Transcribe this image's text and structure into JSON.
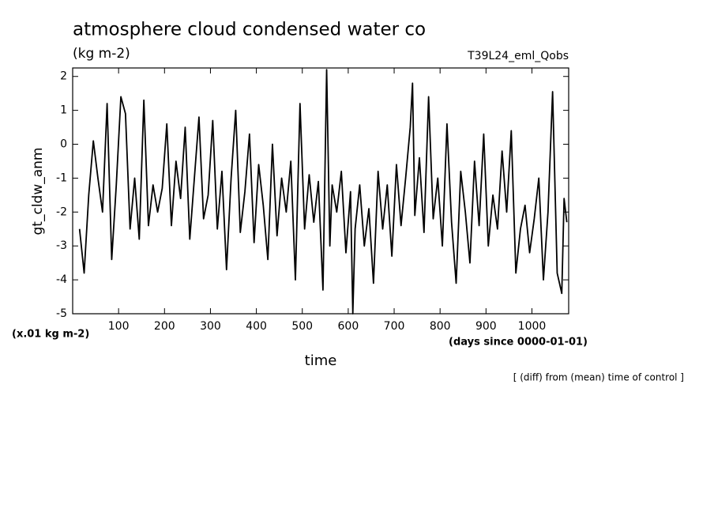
{
  "chart_data": {
    "type": "line",
    "title": "atmosphere cloud condensed water co",
    "subtitle": "(kg m-2)",
    "annotation": "T39L24_eml_Qobs",
    "y_label": "gt_cldw_anm",
    "y_unit": "(x.01 kg m-2)",
    "x_unit": "(days since 0000-01-01)",
    "x_label": "time",
    "footnote": "[ (diff) from (mean) time of control ]",
    "x": [
      15,
      25,
      35,
      45,
      55,
      65,
      75,
      85,
      95,
      105,
      115,
      125,
      135,
      145,
      155,
      165,
      175,
      185,
      195,
      205,
      215,
      225,
      235,
      245,
      255,
      265,
      275,
      285,
      295,
      305,
      315,
      325,
      335,
      345,
      355,
      365,
      375,
      385,
      395,
      405,
      415,
      425,
      435,
      445,
      455,
      465,
      475,
      485,
      495,
      505,
      515,
      525,
      535,
      545,
      553,
      560,
      565,
      575,
      585,
      595,
      605,
      610,
      615,
      625,
      635,
      645,
      655,
      665,
      675,
      685,
      695,
      705,
      715,
      725,
      735,
      740,
      745,
      755,
      765,
      775,
      785,
      795,
      805,
      815,
      825,
      835,
      845,
      855,
      865,
      875,
      885,
      895,
      905,
      915,
      925,
      935,
      945,
      955,
      965,
      975,
      985,
      995,
      1005,
      1015,
      1025,
      1035,
      1045,
      1055,
      1065,
      1070,
      1076
    ],
    "series": [
      {
        "name": "gt_cldw_anm",
        "color": "#000000",
        "values": [
          -2.5,
          -3.8,
          -1.5,
          0.1,
          -1.0,
          -2.0,
          1.2,
          -3.4,
          -1.2,
          1.4,
          0.9,
          -2.5,
          -1.0,
          -2.8,
          1.3,
          -2.4,
          -1.2,
          -2.0,
          -1.3,
          0.6,
          -2.4,
          -0.5,
          -1.6,
          0.5,
          -2.8,
          -1.0,
          0.8,
          -2.2,
          -1.5,
          0.7,
          -2.5,
          -0.8,
          -3.7,
          -1.0,
          1.0,
          -2.6,
          -1.4,
          0.3,
          -2.9,
          -0.6,
          -1.8,
          -3.4,
          0.0,
          -2.7,
          -1.0,
          -2.0,
          -0.5,
          -4.0,
          1.2,
          -2.5,
          -0.9,
          -2.3,
          -1.1,
          -4.3,
          2.2,
          -3.0,
          -1.2,
          -2.0,
          -0.8,
          -3.2,
          -1.4,
          -5.0,
          -2.5,
          -1.2,
          -3.0,
          -1.9,
          -4.1,
          -0.8,
          -2.5,
          -1.2,
          -3.3,
          -0.6,
          -2.4,
          -1.0,
          0.5,
          1.8,
          -2.1,
          -0.4,
          -2.6,
          1.4,
          -2.2,
          -1.0,
          -3.0,
          0.6,
          -2.3,
          -4.1,
          -0.8,
          -2.0,
          -3.5,
          -0.5,
          -2.4,
          0.3,
          -3.0,
          -1.5,
          -2.5,
          -0.2,
          -2.0,
          0.4,
          -3.8,
          -2.5,
          -1.8,
          -3.2,
          -2.2,
          -1.0,
          -4.0,
          -2.0,
          1.55,
          -3.8,
          -4.4,
          -1.6,
          -2.3
        ]
      }
    ],
    "xlim": [
      0,
      1080
    ],
    "ylim": [
      -5,
      2.25
    ],
    "xticks": [
      100,
      200,
      300,
      400,
      500,
      600,
      700,
      800,
      900,
      1000
    ],
    "yticks": [
      -5,
      -4,
      -3,
      -2,
      -1,
      0,
      1,
      2
    ]
  }
}
